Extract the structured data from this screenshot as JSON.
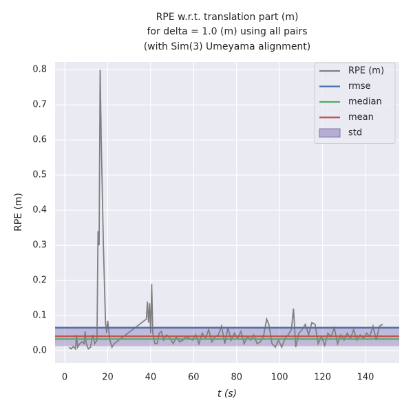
{
  "chart_data": {
    "type": "line",
    "title": [
      "RPE w.r.t. translation part (m)",
      "for delta = 1.0 (m) using all pairs",
      "(with Sim(3) Umeyama alignment)"
    ],
    "x_label": "t (s)",
    "y_label": "RPE (m)",
    "xlim": [
      -4.5,
      155.7
    ],
    "ylim": [
      -0.035,
      0.822
    ],
    "xticks": [
      0,
      20,
      40,
      60,
      80,
      100,
      120,
      140
    ],
    "yticks": [
      {
        "value": 0,
        "label": "0.0"
      },
      0.1,
      0.2,
      0.3,
      0.4,
      0.5,
      0.6,
      0.7,
      0.8
    ],
    "grid": true,
    "legend": "upper right",
    "series": [
      {
        "name": "RPE (m)",
        "color": "#808080",
        "x": [
          2,
          3,
          4,
          5,
          5.5,
          6,
          7,
          8,
          9,
          9.5,
          10,
          11,
          12,
          13,
          14,
          15,
          15.5,
          16,
          16.5,
          17,
          18,
          19,
          19.5,
          20,
          21,
          22,
          23,
          38,
          38.5,
          39,
          39.5,
          40,
          40.5,
          41,
          42,
          43,
          44,
          45,
          46,
          47.5,
          49,
          50.5,
          52,
          53.5,
          55,
          56.5,
          58,
          59.5,
          61,
          62.5,
          64,
          65.5,
          67,
          68.5,
          70,
          71.5,
          73,
          74.5,
          76,
          77.5,
          79,
          80.5,
          82,
          83.5,
          85,
          86.5,
          88,
          89.5,
          91,
          92.5,
          94,
          95,
          96.5,
          98,
          99.5,
          101,
          102.5,
          104,
          105.5,
          106.5,
          107.5,
          109,
          110.5,
          112,
          113.5,
          115,
          116.5,
          118,
          119.5,
          121,
          122.5,
          124,
          125.5,
          127,
          128.5,
          130,
          131.5,
          133,
          134.5,
          136,
          137.5,
          139,
          140.5,
          142,
          143.5,
          145,
          146.5,
          148
        ],
        "values": [
          0.01,
          0.005,
          0.012,
          0.005,
          0.045,
          0.01,
          0.02,
          0.025,
          0.02,
          0.055,
          0.02,
          0.005,
          0.01,
          0.045,
          0.02,
          0.03,
          0.34,
          0.3,
          0.8,
          0.6,
          0.3,
          0.08,
          0.05,
          0.085,
          0.03,
          0.01,
          0.02,
          0.09,
          0.14,
          0.08,
          0.135,
          0.05,
          0.19,
          0.05,
          0.02,
          0.02,
          0.05,
          0.055,
          0.03,
          0.045,
          0.035,
          0.02,
          0.04,
          0.025,
          0.03,
          0.04,
          0.035,
          0.03,
          0.045,
          0.02,
          0.05,
          0.035,
          0.06,
          0.025,
          0.04,
          0.045,
          0.07,
          0.02,
          0.065,
          0.03,
          0.05,
          0.035,
          0.055,
          0.02,
          0.04,
          0.03,
          0.045,
          0.02,
          0.025,
          0.04,
          0.09,
          0.075,
          0.02,
          0.01,
          0.03,
          0.01,
          0.035,
          0.045,
          0.06,
          0.12,
          0.01,
          0.05,
          0.06,
          0.075,
          0.045,
          0.08,
          0.075,
          0.02,
          0.04,
          0.015,
          0.05,
          0.04,
          0.065,
          0.02,
          0.045,
          0.03,
          0.05,
          0.035,
          0.06,
          0.03,
          0.045,
          0.035,
          0.05,
          0.04,
          0.07,
          0.03,
          0.07,
          0.075
        ]
      }
    ],
    "stats": [
      {
        "name": "rmse",
        "color": "#4c72b0",
        "value": 0.065
      },
      {
        "name": "median",
        "color": "#55a868",
        "value": 0.033
      },
      {
        "name": "mean",
        "color": "#c44e52",
        "value": 0.041
      },
      {
        "name": "std",
        "color": "#8172b2",
        "value": 0.028
      }
    ]
  }
}
